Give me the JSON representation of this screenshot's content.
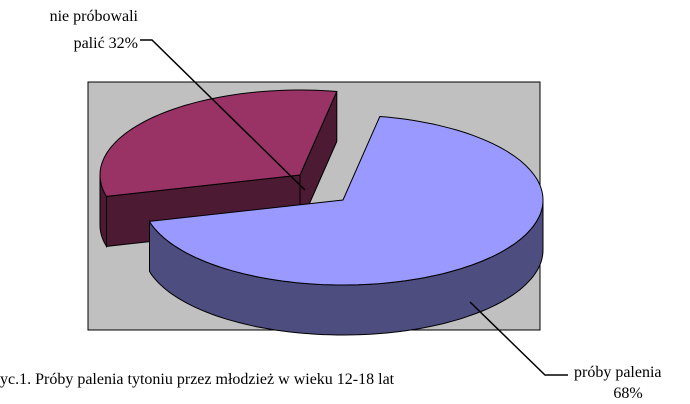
{
  "chart_data": {
    "type": "pie3d",
    "labels": [
      [
        "nie próbowali",
        "palić 32%"
      ],
      [
        "próby palenia",
        "68%"
      ]
    ],
    "values": [
      32,
      68
    ],
    "colors": [
      "#993366",
      "#9999ff"
    ],
    "caption": "yc.1. Próby palenia tytoniu przez młodzież w wieku 12-18 lat"
  }
}
